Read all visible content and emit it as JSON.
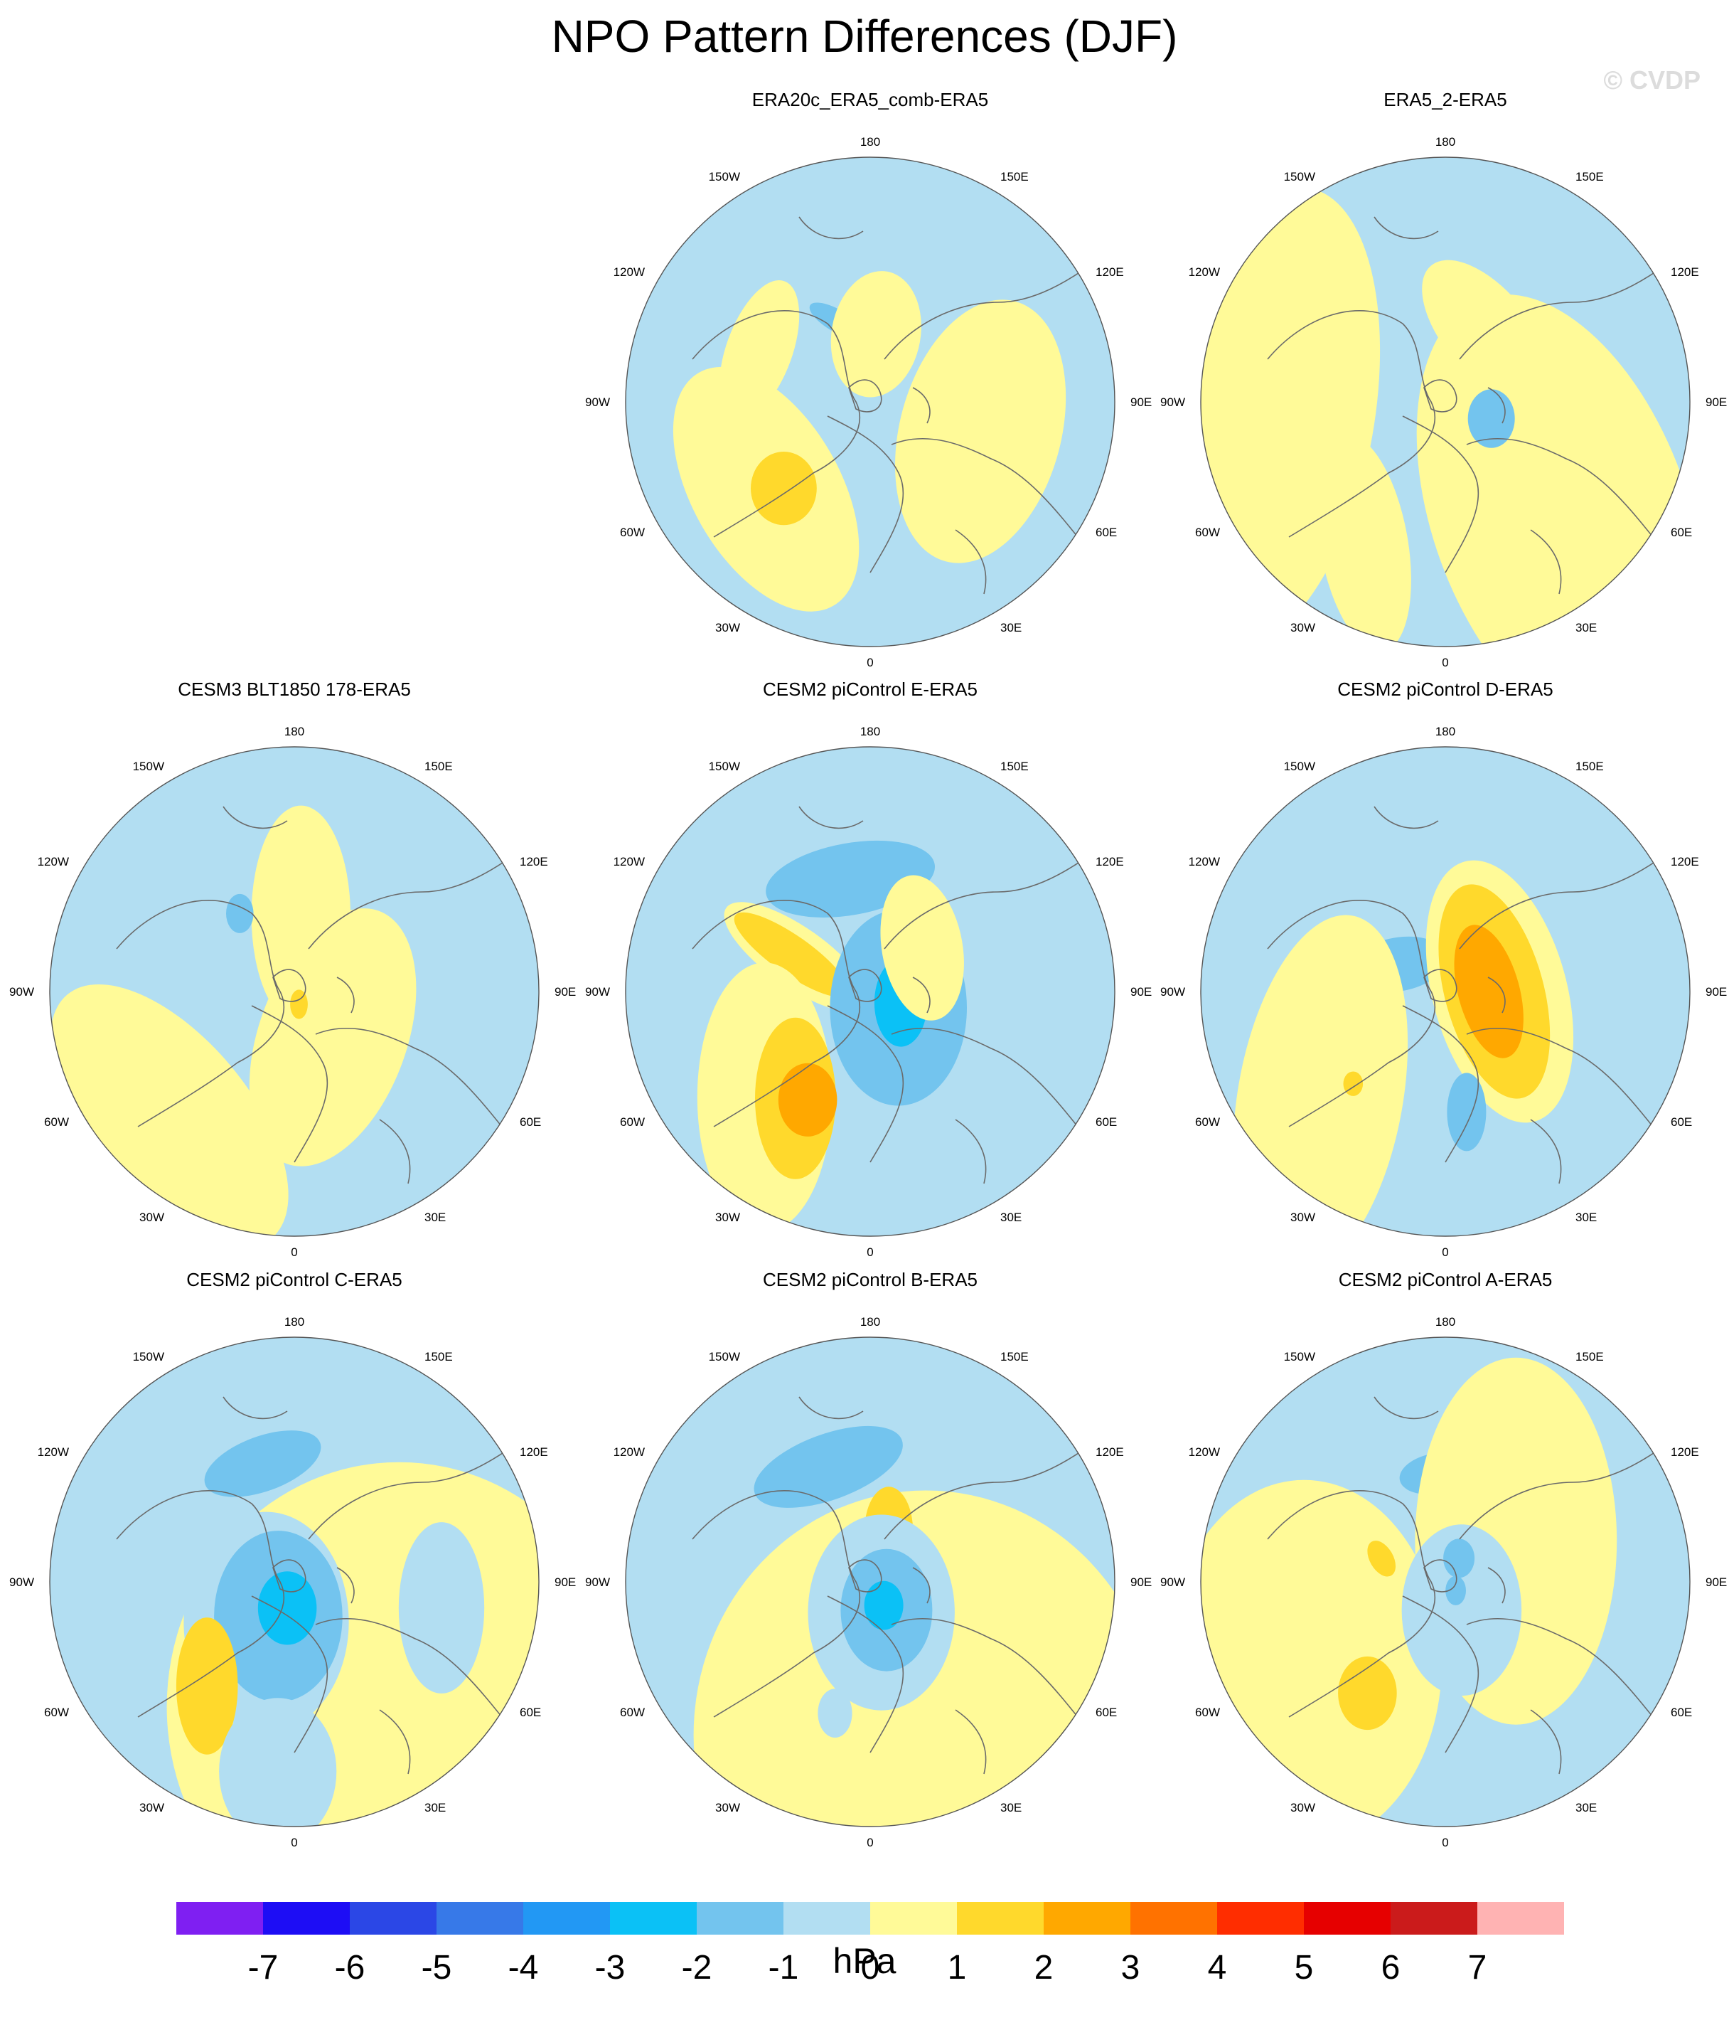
{
  "title": "NPO Pattern Differences (DJF)",
  "watermark": "© CVDP",
  "colorbar": {
    "unit": "hPa",
    "ticks": [
      "-7",
      "-6",
      "-5",
      "-4",
      "-3",
      "-2",
      "-1",
      "0",
      "1",
      "2",
      "3",
      "4",
      "5",
      "6",
      "7"
    ],
    "colors": [
      "#7f1ff2",
      "#1d0df5",
      "#2b47e6",
      "#3779e8",
      "#2298f4",
      "#0bc1f6",
      "#73c4ee",
      "#b2def2",
      "#fffa98",
      "#ffd92c",
      "#ffa800",
      "#ff7200",
      "#ff2d00",
      "#e60000",
      "#cb1b1b",
      "#ffb3b3"
    ]
  },
  "longitude_labels": [
    "180",
    "150E",
    "120E",
    "90E",
    "60E",
    "30E",
    "0",
    "30W",
    "60W",
    "90W",
    "120W",
    "150W"
  ],
  "panels": [
    {
      "title": "ERA20c_ERA5_comb-ERA5",
      "row": 0,
      "col": 1,
      "blobs": [
        {
          "lat": 58,
          "lon": -158,
          "r": 0.13,
          "sx": 0.35,
          "rot": -60,
          "c": 6
        },
        {
          "lat": 65,
          "lon": 175,
          "r": 0.26,
          "sx": 0.7,
          "rot": 10,
          "c": 8
        },
        {
          "lat": 45,
          "lon": -115,
          "r": 0.3,
          "sx": 0.45,
          "rot": 20,
          "c": 8
        },
        {
          "lat": 40,
          "lon": -50,
          "r": 0.55,
          "sx": 0.55,
          "rot": -30,
          "c": 8
        },
        {
          "lat": 48,
          "lon": 75,
          "r": 0.55,
          "sx": 0.6,
          "rot": 15,
          "c": 8
        },
        {
          "lat": 45,
          "lon": -45,
          "r": 0.15,
          "sx": 0.9,
          "rot": 0,
          "c": 9
        }
      ]
    },
    {
      "title": "ERA5_2-ERA5",
      "row": 0,
      "col": 2,
      "blobs": [
        {
          "lat": 60,
          "lon": 150,
          "r": 0.35,
          "sx": 0.5,
          "rot": -40,
          "c": 8
        },
        {
          "lat": 25,
          "lon": -85,
          "r": 0.95,
          "sx": 0.45,
          "rot": 10,
          "c": 8
        },
        {
          "lat": 30,
          "lon": 45,
          "r": 0.95,
          "sx": 0.55,
          "rot": -20,
          "c": 8
        },
        {
          "lat": 30,
          "lon": -30,
          "r": 0.45,
          "sx": 0.4,
          "rot": -10,
          "c": 8
        },
        {
          "lat": 72,
          "lon": 70,
          "r": 0.12,
          "sx": 0.8,
          "rot": 0,
          "c": 6
        }
      ]
    },
    {
      "title": "CESM3 BLT1850 178-ERA5",
      "row": 1,
      "col": 0,
      "blobs": [
        {
          "lat": 62,
          "lon": 175,
          "r": 0.45,
          "sx": 0.45,
          "rot": 0,
          "c": 8
        },
        {
          "lat": 68,
          "lon": 40,
          "r": 0.55,
          "sx": 0.55,
          "rot": 20,
          "c": 8
        },
        {
          "lat": 25,
          "lon": -45,
          "r": 0.65,
          "sx": 0.5,
          "rot": -40,
          "c": 8
        },
        {
          "lat": 85,
          "lon": 20,
          "r": 0.06,
          "sx": 0.6,
          "rot": 0,
          "c": 9
        },
        {
          "lat": 55,
          "lon": -145,
          "r": 0.08,
          "sx": 0.7,
          "rot": 0,
          "c": 6
        }
      ]
    },
    {
      "title": "CESM2 piControl E-ERA5",
      "row": 1,
      "col": 1,
      "blobs": [
        {
          "lat": 48,
          "lon": -170,
          "r": 0.35,
          "sx": 0.42,
          "rot": 80,
          "c": 6
        },
        {
          "lat": 60,
          "lon": -115,
          "r": 0.35,
          "sx": 0.35,
          "rot": -55,
          "c": 8
        },
        {
          "lat": 58,
          "lon": -115,
          "r": 0.28,
          "sx": 0.28,
          "rot": -55,
          "c": 9
        },
        {
          "lat": 35,
          "lon": -45,
          "r": 0.55,
          "sx": 0.5,
          "rot": 0,
          "c": 8
        },
        {
          "lat": 42,
          "lon": -35,
          "r": 0.33,
          "sx": 0.5,
          "rot": 0,
          "c": 9
        },
        {
          "lat": 44,
          "lon": -30,
          "r": 0.15,
          "sx": 0.8,
          "rot": 0,
          "c": 10
        },
        {
          "lat": 78,
          "lon": 60,
          "r": 0.4,
          "sx": 0.7,
          "rot": 0,
          "c": 6
        },
        {
          "lat": 78,
          "lon": 70,
          "r": 0.18,
          "sx": 0.6,
          "rot": 0,
          "c": 5
        },
        {
          "lat": 65,
          "lon": 130,
          "r": 0.3,
          "sx": 0.55,
          "rot": -10,
          "c": 8
        }
      ]
    },
    {
      "title": "CESM2 piControl D-ERA5",
      "row": 1,
      "col": 2,
      "blobs": [
        {
          "lat": 70,
          "lon": -120,
          "r": 0.2,
          "sx": 0.55,
          "rot": 80,
          "c": 6
        },
        {
          "lat": 30,
          "lon": -50,
          "r": 0.75,
          "sx": 0.45,
          "rot": 10,
          "c": 8
        },
        {
          "lat": 70,
          "lon": 90,
          "r": 0.55,
          "sx": 0.5,
          "rot": -15,
          "c": 8
        },
        {
          "lat": 72,
          "lon": 90,
          "r": 0.45,
          "sx": 0.45,
          "rot": -15,
          "c": 9
        },
        {
          "lat": 74,
          "lon": 90,
          "r": 0.28,
          "sx": 0.45,
          "rot": -15,
          "c": 10
        },
        {
          "lat": 45,
          "lon": 10,
          "r": 0.16,
          "sx": 0.5,
          "rot": 0,
          "c": 6
        },
        {
          "lat": 42,
          "lon": -45,
          "r": 0.05,
          "sx": 0.8,
          "rot": 0,
          "c": 9
        }
      ]
    },
    {
      "title": "CESM2 piControl C-ERA5",
      "row": 2,
      "col": 0,
      "blobs": [
        {
          "lat": 45,
          "lon": -165,
          "r": 0.25,
          "sx": 0.45,
          "rot": 70,
          "c": 6
        },
        {
          "lat": 30,
          "lon": 40,
          "r": 1.0,
          "sx": 0.95,
          "rot": 0,
          "c": 8
        },
        {
          "lat": 72,
          "lon": -35,
          "r": 0.45,
          "sx": 0.75,
          "rot": 0,
          "c": 7
        },
        {
          "lat": 76,
          "lon": -25,
          "r": 0.35,
          "sx": 0.75,
          "rot": 0,
          "c": 6
        },
        {
          "lat": 80,
          "lon": -15,
          "r": 0.15,
          "sx": 0.8,
          "rot": 0,
          "c": 5
        },
        {
          "lat": 40,
          "lon": -40,
          "r": 0.28,
          "sx": 0.45,
          "rot": 0,
          "c": 9
        },
        {
          "lat": 35,
          "lon": 80,
          "r": 0.35,
          "sx": 0.5,
          "rot": 0,
          "c": 7
        },
        {
          "lat": 20,
          "lon": -5,
          "r": 0.3,
          "sx": 0.8,
          "rot": 0,
          "c": 7
        }
      ]
    },
    {
      "title": "CESM2 piControl B-ERA5",
      "row": 2,
      "col": 1,
      "blobs": [
        {
          "lat": 45,
          "lon": -160,
          "r": 0.32,
          "sx": 0.42,
          "rot": 70,
          "c": 6
        },
        {
          "lat": 30,
          "lon": 20,
          "r": 1.0,
          "sx": 0.95,
          "rot": 0,
          "c": 8
        },
        {
          "lat": 70,
          "lon": 160,
          "r": 0.18,
          "sx": 0.55,
          "rot": 0,
          "c": 9
        },
        {
          "lat": 78,
          "lon": 20,
          "r": 0.4,
          "sx": 0.75,
          "rot": 0,
          "c": 7
        },
        {
          "lat": 78,
          "lon": 30,
          "r": 0.25,
          "sx": 0.75,
          "rot": 0,
          "c": 6
        },
        {
          "lat": 80,
          "lon": 30,
          "r": 0.1,
          "sx": 0.8,
          "rot": 0,
          "c": 5
        },
        {
          "lat": 40,
          "lon": -15,
          "r": 0.1,
          "sx": 0.7,
          "rot": 0,
          "c": 7
        }
      ]
    },
    {
      "title": "CESM2 piControl A-ERA5",
      "row": 2,
      "col": 2,
      "blobs": [
        {
          "lat": 50,
          "lon": -175,
          "r": 0.15,
          "sx": 0.55,
          "rot": 80,
          "c": 6
        },
        {
          "lat": 30,
          "lon": -60,
          "r": 0.75,
          "sx": 0.75,
          "rot": 0,
          "c": 8
        },
        {
          "lat": 40,
          "lon": -35,
          "r": 0.15,
          "sx": 0.8,
          "rot": 0,
          "c": 9
        },
        {
          "lat": 60,
          "lon": 120,
          "r": 0.75,
          "sx": 0.55,
          "rot": 0,
          "c": 8
        },
        {
          "lat": 78,
          "lon": 30,
          "r": 0.35,
          "sx": 0.7,
          "rot": 0,
          "c": 7
        },
        {
          "lat": 80,
          "lon": 150,
          "r": 0.08,
          "sx": 0.8,
          "rot": 0,
          "c": 6
        },
        {
          "lat": 85,
          "lon": 50,
          "r": 0.06,
          "sx": 0.7,
          "rot": 0,
          "c": 6
        },
        {
          "lat": 65,
          "lon": -110,
          "r": 0.08,
          "sx": 0.6,
          "rot": -30,
          "c": 9
        }
      ]
    }
  ]
}
